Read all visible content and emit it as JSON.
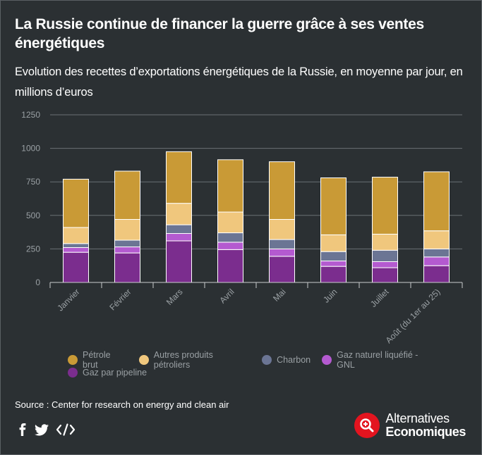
{
  "header": {
    "title": "La Russie continue de financer la guerre grâce à ses ventes énergétiques",
    "subtitle": "Evolution des recettes d’exportations énergétiques de la Russie, en moyenne par jour, en millions d’euros"
  },
  "chart_data": {
    "type": "bar",
    "stacked": true,
    "title": "La Russie continue de financer la guerre grâce à ses ventes énergétiques",
    "subtitle": "Evolution des recettes d’exportations énergétiques de la Russie, en moyenne par jour, en millions d’euros",
    "xlabel": "",
    "ylabel": "",
    "ylim": [
      0,
      1250
    ],
    "yticks": [
      0,
      250,
      500,
      750,
      1000,
      1250
    ],
    "grid": true,
    "legend_position": "bottom",
    "categories": [
      "Janvier",
      "Février",
      "Mars",
      "Avril",
      "Mai",
      "Juin",
      "Juillet",
      "Août (du 1er au 25)"
    ],
    "series": [
      {
        "name": "Gaz par pipeline",
        "color": "#7b2d8e",
        "values": [
          225,
          220,
          310,
          245,
          195,
          120,
          110,
          125
        ]
      },
      {
        "name": "Gaz naturel liquéfié - GNL",
        "color": "#b45ad0",
        "values": [
          35,
          45,
          55,
          55,
          55,
          40,
          45,
          65
        ]
      },
      {
        "name": "Charbon",
        "color": "#6b7594",
        "values": [
          30,
          50,
          65,
          70,
          70,
          70,
          85,
          60
        ]
      },
      {
        "name": "Autres produits pétroliers",
        "color": "#f0c77d",
        "values": [
          120,
          155,
          160,
          155,
          150,
          125,
          120,
          135
        ]
      },
      {
        "name": "Pétrole brut",
        "color": "#c99a36",
        "values": [
          360,
          360,
          385,
          390,
          430,
          425,
          425,
          440
        ]
      }
    ]
  },
  "legend": {
    "row1": [
      {
        "label": "Pétrole brut",
        "color": "#c99a36"
      },
      {
        "label": "Autres produits pétroliers",
        "color": "#f0c77d"
      },
      {
        "label": "Charbon",
        "color": "#6b7594"
      },
      {
        "label": "Gaz naturel liquéfié - GNL",
        "color": "#b45ad0"
      }
    ],
    "row2": [
      {
        "label": "Gaz par pipeline",
        "color": "#7b2d8e"
      }
    ]
  },
  "footer": {
    "source": "Source : Center for research on energy and clean air",
    "social": [
      "facebook-icon",
      "twitter-icon",
      "embed-code-icon"
    ],
    "logo_top": "Alternatives",
    "logo_bottom": "Economiques",
    "logo_color": "#e3141f"
  }
}
